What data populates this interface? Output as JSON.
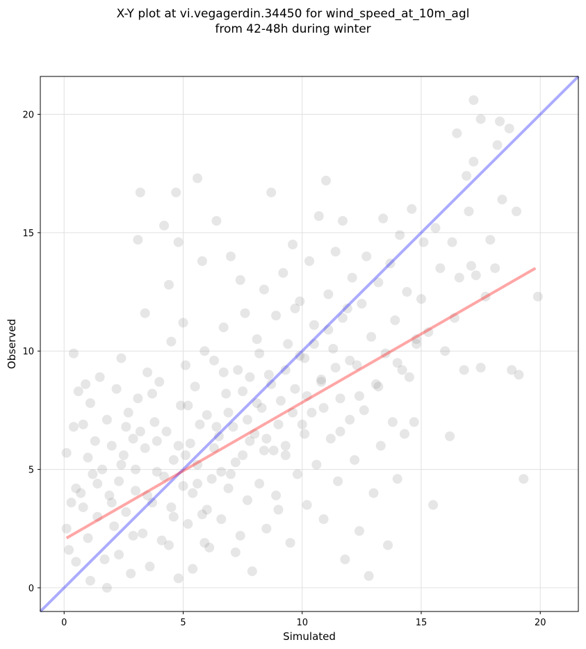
{
  "chart_data": {
    "type": "scatter",
    "title_line1": "X-Y plot at vi.vegagerdin.34450 for wind_speed_at_10m_agl",
    "title_line2": "from 42-48h during winter",
    "xlabel": "Simulated",
    "ylabel": "Observed",
    "xlim": [
      -1,
      21.6
    ],
    "ylim": [
      -1,
      21.6
    ],
    "xticks": [
      0,
      5,
      10,
      15,
      20
    ],
    "yticks": [
      0,
      5,
      10,
      15,
      20
    ],
    "grid": true,
    "point_color": "#808080",
    "identity_line": {
      "x": [
        -1,
        21.6
      ],
      "y": [
        -1,
        21.6
      ],
      "color": "#0000ff"
    },
    "fit_line": {
      "x": [
        0.1,
        19.8
      ],
      "y": [
        2.1,
        13.5
      ],
      "color": "#ff0000"
    },
    "points": [
      [
        0.1,
        5.7
      ],
      [
        0.1,
        2.5
      ],
      [
        0.2,
        1.6
      ],
      [
        0.3,
        3.6
      ],
      [
        0.4,
        9.9
      ],
      [
        0.4,
        6.8
      ],
      [
        0.5,
        4.2
      ],
      [
        0.5,
        1.1
      ],
      [
        0.6,
        8.3
      ],
      [
        0.7,
        4.0
      ],
      [
        0.8,
        6.9
      ],
      [
        0.8,
        3.4
      ],
      [
        0.9,
        8.6
      ],
      [
        1.0,
        5.5
      ],
      [
        1.0,
        2.1
      ],
      [
        1.1,
        7.8
      ],
      [
        1.1,
        0.3
      ],
      [
        1.2,
        4.8
      ],
      [
        1.3,
        6.2
      ],
      [
        1.4,
        3.0
      ],
      [
        1.5,
        8.9
      ],
      [
        1.6,
        5.0
      ],
      [
        1.7,
        1.2
      ],
      [
        1.8,
        7.1
      ],
      [
        1.8,
        0.0
      ],
      [
        1.9,
        3.9
      ],
      [
        2.0,
        6.0
      ],
      [
        2.1,
        2.6
      ],
      [
        2.2,
        8.4
      ],
      [
        2.3,
        4.5
      ],
      [
        2.3,
        1.4
      ],
      [
        2.4,
        9.7
      ],
      [
        2.5,
        5.6
      ],
      [
        2.6,
        3.2
      ],
      [
        2.7,
        7.4
      ],
      [
        2.8,
        0.6
      ],
      [
        2.9,
        6.3
      ],
      [
        3.0,
        4.1
      ],
      [
        3.1,
        8.0
      ],
      [
        3.1,
        14.7
      ],
      [
        3.2,
        16.7
      ],
      [
        3.3,
        2.3
      ],
      [
        3.4,
        11.6
      ],
      [
        3.4,
        5.9
      ],
      [
        3.5,
        9.1
      ],
      [
        3.6,
        0.9
      ],
      [
        3.7,
        3.6
      ],
      [
        3.8,
        7.0
      ],
      [
        3.9,
        4.9
      ],
      [
        4.0,
        8.7
      ],
      [
        4.1,
        2.0
      ],
      [
        4.2,
        15.3
      ],
      [
        4.3,
        6.6
      ],
      [
        4.4,
        12.8
      ],
      [
        4.5,
        3.4
      ],
      [
        4.5,
        10.4
      ],
      [
        4.6,
        5.4
      ],
      [
        4.7,
        16.7
      ],
      [
        4.8,
        14.6
      ],
      [
        4.8,
        0.4
      ],
      [
        4.9,
        7.7
      ],
      [
        5.0,
        4.3
      ],
      [
        5.0,
        11.2
      ],
      [
        5.1,
        9.4
      ],
      [
        5.2,
        2.7
      ],
      [
        5.3,
        6.1
      ],
      [
        5.4,
        0.8
      ],
      [
        5.5,
        8.5
      ],
      [
        5.6,
        5.2
      ],
      [
        5.6,
        17.3
      ],
      [
        5.8,
        13.8
      ],
      [
        5.8,
        3.1
      ],
      [
        5.9,
        10.0
      ],
      [
        6.0,
        7.3
      ],
      [
        6.1,
        1.7
      ],
      [
        6.2,
        4.6
      ],
      [
        6.3,
        9.6
      ],
      [
        6.4,
        15.5
      ],
      [
        6.5,
        6.4
      ],
      [
        6.6,
        2.9
      ],
      [
        6.7,
        11.0
      ],
      [
        6.8,
        8.2
      ],
      [
        6.9,
        4.2
      ],
      [
        7.0,
        14.0
      ],
      [
        7.1,
        6.8
      ],
      [
        7.2,
        1.5
      ],
      [
        7.3,
        9.2
      ],
      [
        7.4,
        13.0
      ],
      [
        7.5,
        5.6
      ],
      [
        7.6,
        11.6
      ],
      [
        7.7,
        3.7
      ],
      [
        7.8,
        8.9
      ],
      [
        7.9,
        0.7
      ],
      [
        8.0,
        6.5
      ],
      [
        8.1,
        10.5
      ],
      [
        8.2,
        4.4
      ],
      [
        8.3,
        7.6
      ],
      [
        8.4,
        12.6
      ],
      [
        8.5,
        2.5
      ],
      [
        8.6,
        9.0
      ],
      [
        8.7,
        16.7
      ],
      [
        8.8,
        5.8
      ],
      [
        8.9,
        11.5
      ],
      [
        9.0,
        3.3
      ],
      [
        9.1,
        7.9
      ],
      [
        9.2,
        13.3
      ],
      [
        9.3,
        6.0
      ],
      [
        9.4,
        10.3
      ],
      [
        9.5,
        1.9
      ],
      [
        9.6,
        14.5
      ],
      [
        9.7,
        8.4
      ],
      [
        9.8,
        4.8
      ],
      [
        9.9,
        12.1
      ],
      [
        10.0,
        6.9
      ],
      [
        10.1,
        9.7
      ],
      [
        10.2,
        3.5
      ],
      [
        10.3,
        13.8
      ],
      [
        10.4,
        7.4
      ],
      [
        10.5,
        11.1
      ],
      [
        10.6,
        5.2
      ],
      [
        10.7,
        15.7
      ],
      [
        10.8,
        8.8
      ],
      [
        10.9,
        2.9
      ],
      [
        11.0,
        17.2
      ],
      [
        11.1,
        12.4
      ],
      [
        11.2,
        6.3
      ],
      [
        11.3,
        10.1
      ],
      [
        11.4,
        14.2
      ],
      [
        11.5,
        4.5
      ],
      [
        11.6,
        8.0
      ],
      [
        11.7,
        15.5
      ],
      [
        11.8,
        1.2
      ],
      [
        11.9,
        11.8
      ],
      [
        12.0,
        7.1
      ],
      [
        12.1,
        13.1
      ],
      [
        12.2,
        5.4
      ],
      [
        12.3,
        9.4
      ],
      [
        12.4,
        2.4
      ],
      [
        12.5,
        12.0
      ],
      [
        12.6,
        7.5
      ],
      [
        12.7,
        14.0
      ],
      [
        12.8,
        0.5
      ],
      [
        12.9,
        10.6
      ],
      [
        13.0,
        4.0
      ],
      [
        13.1,
        8.6
      ],
      [
        13.2,
        12.9
      ],
      [
        13.3,
        6.0
      ],
      [
        13.4,
        15.6
      ],
      [
        13.5,
        9.9
      ],
      [
        13.6,
        1.8
      ],
      [
        13.7,
        13.7
      ],
      [
        13.8,
        7.0
      ],
      [
        13.9,
        11.3
      ],
      [
        14.0,
        4.6
      ],
      [
        14.1,
        14.9
      ],
      [
        14.2,
        9.2
      ],
      [
        14.3,
        6.5
      ],
      [
        14.4,
        12.5
      ],
      [
        14.5,
        8.9
      ],
      [
        14.6,
        16.0
      ],
      [
        14.7,
        7.0
      ],
      [
        14.8,
        10.5
      ],
      [
        15.0,
        12.2
      ],
      [
        15.1,
        14.6
      ],
      [
        15.3,
        10.8
      ],
      [
        15.5,
        3.5
      ],
      [
        15.6,
        15.2
      ],
      [
        15.8,
        13.5
      ],
      [
        16.0,
        10.0
      ],
      [
        16.2,
        6.4
      ],
      [
        16.3,
        14.6
      ],
      [
        16.4,
        11.4
      ],
      [
        16.5,
        19.2
      ],
      [
        16.6,
        13.1
      ],
      [
        16.8,
        9.2
      ],
      [
        16.9,
        17.4
      ],
      [
        17.0,
        15.9
      ],
      [
        17.1,
        13.6
      ],
      [
        17.2,
        18.0
      ],
      [
        17.2,
        20.6
      ],
      [
        17.3,
        13.2
      ],
      [
        17.5,
        19.8
      ],
      [
        17.5,
        9.3
      ],
      [
        17.7,
        12.3
      ],
      [
        17.9,
        14.7
      ],
      [
        18.1,
        13.5
      ],
      [
        18.2,
        18.7
      ],
      [
        18.3,
        19.7
      ],
      [
        18.4,
        16.4
      ],
      [
        18.7,
        19.4
      ],
      [
        18.8,
        9.2
      ],
      [
        19.0,
        15.9
      ],
      [
        19.1,
        9.0
      ],
      [
        19.3,
        4.6
      ],
      [
        19.9,
        12.3
      ],
      [
        2.0,
        3.6
      ],
      [
        2.6,
        6.8
      ],
      [
        3.0,
        5.0
      ],
      [
        3.5,
        3.9
      ],
      [
        3.9,
        6.2
      ],
      [
        4.2,
        4.7
      ],
      [
        4.6,
        3.0
      ],
      [
        5.1,
        5.6
      ],
      [
        5.4,
        4.0
      ],
      [
        5.7,
        6.9
      ],
      [
        6.0,
        3.3
      ],
      [
        6.3,
        5.9
      ],
      [
        6.6,
        4.9
      ],
      [
        6.9,
        7.4
      ],
      [
        7.2,
        5.3
      ],
      [
        7.5,
        8.3
      ],
      [
        7.8,
        6.2
      ],
      [
        8.1,
        7.8
      ],
      [
        8.4,
        5.8
      ],
      [
        8.7,
        8.6
      ],
      [
        9.0,
        6.9
      ],
      [
        9.3,
        9.2
      ],
      [
        9.6,
        7.4
      ],
      [
        9.9,
        9.8
      ],
      [
        10.2,
        8.1
      ],
      [
        10.5,
        10.3
      ],
      [
        10.8,
        8.7
      ],
      [
        11.1,
        10.9
      ],
      [
        11.4,
        9.3
      ],
      [
        11.7,
        11.4
      ],
      [
        12.0,
        9.6
      ],
      [
        1.4,
        4.4
      ],
      [
        2.9,
        2.2
      ],
      [
        4.4,
        1.8
      ],
      [
        5.9,
        1.9
      ],
      [
        7.4,
        2.2
      ],
      [
        8.9,
        3.9
      ],
      [
        3.7,
        8.2
      ],
      [
        5.2,
        7.7
      ],
      [
        6.7,
        9.1
      ],
      [
        8.2,
        9.9
      ],
      [
        9.7,
        11.8
      ],
      [
        2.4,
        5.2
      ],
      [
        3.2,
        6.6
      ],
      [
        4.8,
        6.0
      ],
      [
        5.6,
        4.4
      ],
      [
        6.4,
        6.8
      ],
      [
        7.0,
        4.8
      ],
      [
        7.7,
        7.1
      ],
      [
        8.5,
        6.3
      ],
      [
        9.3,
        5.6
      ],
      [
        10.1,
        6.5
      ],
      [
        10.9,
        7.6
      ],
      [
        11.6,
        6.6
      ],
      [
        12.4,
        8.1
      ],
      [
        13.2,
        8.5
      ],
      [
        14.0,
        9.5
      ],
      [
        14.8,
        10.3
      ]
    ]
  }
}
